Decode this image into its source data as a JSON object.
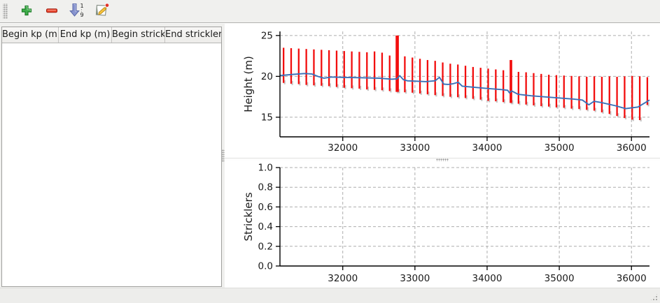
{
  "toolbar": {
    "icons": [
      "add-icon",
      "remove-icon",
      "sort-1-9-icon",
      "edit-icon"
    ]
  },
  "table": {
    "headers": [
      "Begin kp (m)",
      "End kp (m)",
      "Begin strickler",
      "End strickler"
    ],
    "rows": []
  },
  "colors": {
    "bar_red": "#f20d0d",
    "bar_shadow": "#c9c9c9",
    "line_blue": "#3a71b9",
    "grid_gray": "#adadad",
    "window_bg": "#f0f0ee"
  },
  "chart_data": [
    {
      "type": "errorbar-line",
      "title": "",
      "xlabel": "",
      "ylabel": "Height (m)",
      "xlim": [
        31130,
        36250
      ],
      "ylim": [
        12.6,
        25.5
      ],
      "grid": true,
      "legend": "none",
      "xticks": [
        {
          "v": 32000,
          "t": "32000"
        },
        {
          "v": 33000,
          "t": "33000"
        },
        {
          "v": 34000,
          "t": "34000"
        },
        {
          "v": 35000,
          "t": "35000"
        },
        {
          "v": 36000,
          "t": "36000"
        }
      ],
      "yticks": [
        {
          "v": 15,
          "t": "15"
        },
        {
          "v": 20,
          "t": "20"
        },
        {
          "v": 25,
          "t": "25"
        }
      ],
      "bar_color": "#f20d0d",
      "bar_shadow_color": "#c9c9c9",
      "line_color": "#3a71b9",
      "bars": [
        [
          31180,
          19.2,
          23.5
        ],
        [
          31285,
          19.1,
          23.45
        ],
        [
          31390,
          19.05,
          23.4
        ],
        [
          31495,
          18.95,
          23.35
        ],
        [
          31600,
          18.9,
          23.3
        ],
        [
          31705,
          18.85,
          23.25
        ],
        [
          31810,
          18.8,
          23.2
        ],
        [
          31915,
          18.7,
          23.15
        ],
        [
          32020,
          18.6,
          23.1
        ],
        [
          32125,
          18.55,
          23.05
        ],
        [
          32230,
          18.5,
          23.0
        ],
        [
          32335,
          18.4,
          22.95
        ],
        [
          32440,
          18.35,
          23.05
        ],
        [
          32545,
          18.3,
          22.9
        ],
        [
          32650,
          18.2,
          22.55
        ],
        [
          32755,
          18.1,
          25.0,
          2
        ],
        [
          32860,
          18.05,
          22.45
        ],
        [
          32965,
          18.0,
          22.3
        ],
        [
          33070,
          17.9,
          22.15
        ],
        [
          33175,
          17.8,
          22.0
        ],
        [
          33280,
          17.7,
          21.9
        ],
        [
          33385,
          17.6,
          21.7
        ],
        [
          33490,
          17.5,
          21.55
        ],
        [
          33595,
          17.45,
          21.45
        ],
        [
          33700,
          17.35,
          21.3
        ],
        [
          33805,
          17.25,
          21.15
        ],
        [
          33910,
          17.15,
          21.05
        ],
        [
          34015,
          17.0,
          20.95
        ],
        [
          34120,
          16.95,
          20.85
        ],
        [
          34225,
          16.85,
          20.75
        ],
        [
          34330,
          16.75,
          22.0,
          1.6
        ],
        [
          34435,
          16.65,
          20.55
        ],
        [
          34540,
          16.55,
          20.5
        ],
        [
          34645,
          16.45,
          20.4
        ],
        [
          34750,
          16.35,
          20.3
        ],
        [
          34855,
          16.3,
          20.2
        ],
        [
          34960,
          16.2,
          20.15
        ],
        [
          35065,
          16.15,
          20.1
        ],
        [
          35170,
          16.05,
          20.05
        ],
        [
          35275,
          16.0,
          20.0
        ],
        [
          35380,
          15.9,
          19.95
        ],
        [
          35485,
          15.8,
          20.0
        ],
        [
          35590,
          15.6,
          19.95
        ],
        [
          35695,
          15.4,
          20.0
        ],
        [
          35800,
          15.15,
          19.95
        ],
        [
          35905,
          14.9,
          20.0
        ],
        [
          36010,
          14.7,
          20.05
        ],
        [
          36115,
          14.65,
          20.0
        ],
        [
          36220,
          16.5,
          19.9
        ]
      ],
      "line": [
        [
          31130,
          20.1
        ],
        [
          31320,
          20.25
        ],
        [
          31470,
          20.35
        ],
        [
          31570,
          20.3
        ],
        [
          31660,
          19.98
        ],
        [
          31740,
          19.78
        ],
        [
          31840,
          19.92
        ],
        [
          32030,
          19.87
        ],
        [
          32290,
          19.83
        ],
        [
          32510,
          19.78
        ],
        [
          32680,
          19.66
        ],
        [
          32750,
          19.7
        ],
        [
          32790,
          20.08
        ],
        [
          32840,
          19.6
        ],
        [
          32900,
          19.45
        ],
        [
          33000,
          19.42
        ],
        [
          33150,
          19.36
        ],
        [
          33280,
          19.46
        ],
        [
          33340,
          19.88
        ],
        [
          33400,
          19.05
        ],
        [
          33460,
          19.02
        ],
        [
          33530,
          19.1
        ],
        [
          33600,
          19.28
        ],
        [
          33655,
          18.8
        ],
        [
          33800,
          18.68
        ],
        [
          34000,
          18.52
        ],
        [
          34200,
          18.38
        ],
        [
          34285,
          18.3
        ],
        [
          34310,
          17.98
        ],
        [
          34340,
          18.22
        ],
        [
          34430,
          17.8
        ],
        [
          34610,
          17.62
        ],
        [
          34900,
          17.42
        ],
        [
          35200,
          17.22
        ],
        [
          35320,
          17.1
        ],
        [
          35410,
          16.52
        ],
        [
          35480,
          16.95
        ],
        [
          35580,
          16.8
        ],
        [
          35780,
          16.4
        ],
        [
          35920,
          16.05
        ],
        [
          36090,
          16.25
        ],
        [
          36250,
          17.1
        ]
      ]
    },
    {
      "type": "empty-axes",
      "title": "",
      "xlabel": "",
      "ylabel": "Stricklers",
      "xlim": [
        31130,
        36250
      ],
      "ylim": [
        0.0,
        1.0
      ],
      "grid": true,
      "legend": "none",
      "xticks": [
        {
          "v": 32000,
          "t": "32000"
        },
        {
          "v": 33000,
          "t": "33000"
        },
        {
          "v": 34000,
          "t": "34000"
        },
        {
          "v": 35000,
          "t": "35000"
        },
        {
          "v": 36000,
          "t": "36000"
        }
      ],
      "yticks": [
        {
          "v": 0.0,
          "t": "0.0"
        },
        {
          "v": 0.2,
          "t": "0.2"
        },
        {
          "v": 0.4,
          "t": "0.4"
        },
        {
          "v": 0.6,
          "t": "0.6"
        },
        {
          "v": 0.8,
          "t": "0.8"
        },
        {
          "v": 1.0,
          "t": "1.0"
        }
      ],
      "bars": [],
      "line": []
    }
  ]
}
